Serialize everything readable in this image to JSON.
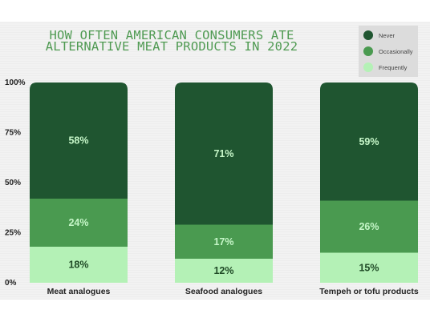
{
  "chart_data": {
    "type": "bar",
    "stacked": true,
    "title_lines": [
      "HOW OFTEN AMERICAN CONSUMERS ATE",
      "ALTERNATIVE MEAT PRODUCTS IN 2022"
    ],
    "categories": [
      "Meat analogues",
      "Seafood analogues",
      "Tempeh or tofu products"
    ],
    "series": [
      {
        "name": "Frequently",
        "values": [
          18,
          12,
          15
        ],
        "color": "#b4f1b6",
        "label_color": "#1f4a26"
      },
      {
        "name": "Occasionally",
        "values": [
          24,
          17,
          26
        ],
        "color": "#4a9a50",
        "label_color": "#c6f6c8"
      },
      {
        "name": "Never",
        "values": [
          58,
          71,
          59
        ],
        "color": "#1f5530",
        "label_color": "#c6f6c8"
      }
    ],
    "data_labels": [
      [
        "18%",
        "12%",
        "15%"
      ],
      [
        "24%",
        "17%",
        "26%"
      ],
      [
        "58%",
        "71%",
        "59%"
      ]
    ],
    "y_ticks": [
      {
        "value": 0,
        "label": "0%"
      },
      {
        "value": 25,
        "label": "25%"
      },
      {
        "value": 50,
        "label": "50%"
      },
      {
        "value": 75,
        "label": "75%"
      },
      {
        "value": 100,
        "label": "100%"
      }
    ],
    "ylim": [
      0,
      100
    ],
    "grid": false,
    "legend_position": "top-right",
    "legend_order": [
      "Never",
      "Occasionally",
      "Frequently"
    ]
  }
}
